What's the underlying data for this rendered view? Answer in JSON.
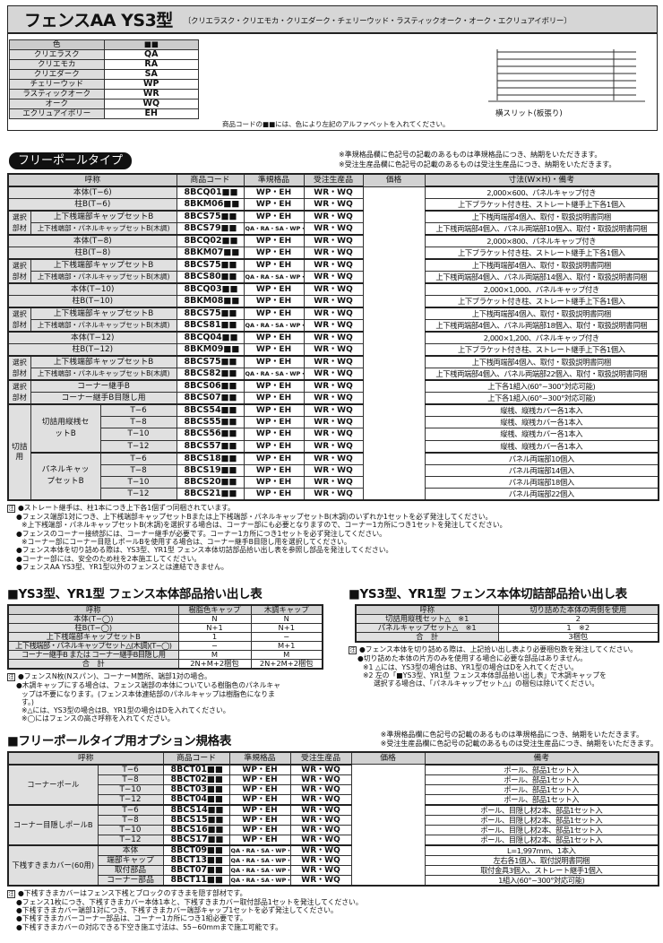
{
  "header": {
    "title": "フェンスAA YS3型",
    "subtitle": "〔クリエラスク・クリエモカ・クリエダーク・チェリーウッド・ラスティックオーク・オーク・エクリュアイボリー〕"
  },
  "colors": {
    "head": [
      "色",
      "■■"
    ],
    "rows": [
      [
        "クリエラスク",
        "QA"
      ],
      [
        "クリエモカ",
        "RA"
      ],
      [
        "クリエダーク",
        "SA"
      ],
      [
        "チェリーウッド",
        "WP"
      ],
      [
        "ラスティックオーク",
        "WR"
      ],
      [
        "オーク",
        "WQ"
      ],
      [
        "エクリュアイボリー",
        "EH"
      ]
    ]
  },
  "code_note": "商品コードの■■には、色により左記のアルファベットを入れてください。",
  "fence_caption": "横スリット(板張り)",
  "section_pill": "フリーポールタイプ",
  "stock_notes": [
    "※準規格品欄に色記号の記載のあるものは準規格品につき、納期をいただきます。",
    "※受注生産品欄に色記号の記載のあるものは受注生産品につき、納期をいただきます。"
  ],
  "main_table": {
    "headers": [
      "呼称",
      "商品コード",
      "準規格品",
      "受注生産品",
      "価格",
      "寸法(W×H)・備考"
    ],
    "blocks": [
      {
        "type": "plain",
        "rows": [
          {
            "name": "本体(T−6)",
            "code": "8BCQ01",
            "std": "WP・EH",
            "ord": "WR・WQ",
            "note": "2,000×600、パネルキャップ付き"
          },
          {
            "name": "柱B(T−6)",
            "code": "8BKM06",
            "std": "WP・EH",
            "ord": "WR・WQ",
            "note": "上下ブラケット付き柱、ストレート継手上下各1個入"
          }
        ]
      },
      {
        "type": "select",
        "label": "選択部材",
        "rows": [
          {
            "name": "上下桟端部キャップセットB",
            "code": "8BCS75",
            "std": "WP・EH",
            "ord": "WR・WQ",
            "note": "上下桟両端部4個入、取付・取扱説明書同梱"
          },
          {
            "name": "上下桟端部・パネルキャップセットB(木調)",
            "code": "8BCS79",
            "std": "QA・RA・SA・WP・EH",
            "ord": "WR・WQ",
            "note": "上下桟両端部4個入、パネル両端部10個入、取付・取扱説明書同梱"
          }
        ]
      },
      {
        "type": "plain",
        "rows": [
          {
            "name": "本体(T−8)",
            "code": "8BCQ02",
            "std": "WP・EH",
            "ord": "WR・WQ",
            "note": "2,000×800、パネルキャップ付き"
          },
          {
            "name": "柱B(T−8)",
            "code": "8BKM07",
            "std": "WP・EH",
            "ord": "WR・WQ",
            "note": "上下ブラケット付き柱、ストレート継手上下各1個入"
          }
        ]
      },
      {
        "type": "select",
        "label": "選択部材",
        "rows": [
          {
            "name": "上下桟端部キャップセットB",
            "code": "8BCS75",
            "std": "WP・EH",
            "ord": "WR・WQ",
            "note": "上下桟両端部4個入、取付・取扱説明書同梱"
          },
          {
            "name": "上下桟端部・パネルキャップセットB(木調)",
            "code": "8BCS80",
            "std": "QA・RA・SA・WP・EH",
            "ord": "WR・WQ",
            "note": "上下桟両端部4個入、パネル両端部14個入、取付・取扱説明書同梱"
          }
        ]
      },
      {
        "type": "plain",
        "rows": [
          {
            "name": "本体(T−10)",
            "code": "8BCQ03",
            "std": "WP・EH",
            "ord": "WR・WQ",
            "note": "2,000×1,000、パネルキャップ付き"
          },
          {
            "name": "柱B(T−10)",
            "code": "8BKM08",
            "std": "WP・EH",
            "ord": "WR・WQ",
            "note": "上下ブラケット付き柱、ストレート継手上下各1個入"
          }
        ]
      },
      {
        "type": "select",
        "label": "選択部材",
        "rows": [
          {
            "name": "上下桟端部キャップセットB",
            "code": "8BCS75",
            "std": "WP・EH",
            "ord": "WR・WQ",
            "note": "上下桟両端部4個入、取付・取扱説明書同梱"
          },
          {
            "name": "上下桟端部・パネルキャップセットB(木調)",
            "code": "8BCS81",
            "std": "QA・RA・SA・WP・EH",
            "ord": "WR・WQ",
            "note": "上下桟両端部4個入、パネル両端部18個入、取付・取扱説明書同梱"
          }
        ]
      },
      {
        "type": "plain",
        "rows": [
          {
            "name": "本体(T−12)",
            "code": "8BCQ04",
            "std": "WP・EH",
            "ord": "WR・WQ",
            "note": "2,000×1,200、パネルキャップ付き"
          },
          {
            "name": "柱B(T−12)",
            "code": "8BKM09",
            "std": "WP・EH",
            "ord": "WR・WQ",
            "note": "上下ブラケット付き柱、ストレート継手上下各1個入"
          }
        ]
      },
      {
        "type": "select",
        "label": "選択部材",
        "rows": [
          {
            "name": "上下桟端部キャップセットB",
            "code": "8BCS75",
            "std": "WP・EH",
            "ord": "WR・WQ",
            "note": "上下桟両端部4個入、取付・取扱説明書同梱"
          },
          {
            "name": "上下桟端部・パネルキャップセットB(木調)",
            "code": "8BCS82",
            "std": "QA・RA・SA・WP・EH",
            "ord": "WR・WQ",
            "note": "上下桟両端部4個入、パネル両端部22個入、取付・取扱説明書同梱"
          }
        ]
      },
      {
        "type": "select",
        "label": "選択部材",
        "rows": [
          {
            "name": "コーナー継手B",
            "code": "8BCS06",
            "std": "WP・EH",
            "ord": "WR・WQ",
            "note": "上下各1組入(60°~300°対応可能)"
          },
          {
            "name": "コーナー継手B目隠し用",
            "code": "8BCS07",
            "std": "WP・EH",
            "ord": "WR・WQ",
            "note": "上下各1組入(60°~300°対応可能)"
          }
        ]
      },
      {
        "type": "cut",
        "label": "切詰用",
        "groups": [
          {
            "label": "切詰用縦桟セットB",
            "rows": [
              {
                "name": "T−6",
                "code": "8BCS54",
                "std": "WP・EH",
                "ord": "WR・WQ",
                "note": "縦桟、縦桟カバー各1本入"
              },
              {
                "name": "T−8",
                "code": "8BCS55",
                "std": "WP・EH",
                "ord": "WR・WQ",
                "note": "縦桟、縦桟カバー各1本入"
              },
              {
                "name": "T−10",
                "code": "8BCS56",
                "std": "WP・EH",
                "ord": "WR・WQ",
                "note": "縦桟、縦桟カバー各1本入"
              },
              {
                "name": "T−12",
                "code": "8BCS57",
                "std": "WP・EH",
                "ord": "WR・WQ",
                "note": "縦桟、縦桟カバー各1本入"
              }
            ]
          },
          {
            "label": "パネルキャップセットB",
            "rows": [
              {
                "name": "T−6",
                "code": "8BCS18",
                "std": "WP・EH",
                "ord": "WR・WQ",
                "note": "パネル両端部10個入"
              },
              {
                "name": "T−8",
                "code": "8BCS19",
                "std": "WP・EH",
                "ord": "WR・WQ",
                "note": "パネル両端部14個入"
              },
              {
                "name": "T−10",
                "code": "8BCS20",
                "std": "WP・EH",
                "ord": "WR・WQ",
                "note": "パネル両端部18個入"
              },
              {
                "name": "T−12",
                "code": "8BCS21",
                "std": "WP・EH",
                "ord": "WR・WQ",
                "note": "パネル両端部22個入"
              }
            ]
          }
        ]
      }
    ],
    "code_suffix": "■■"
  },
  "main_notes": {
    "mark": "注",
    "lines": [
      {
        "t": "●ストレート継手は、柱1本につき上下各1個ずつ同梱されています。",
        "l": 1
      },
      {
        "t": "●フェンス端部1対につき、上下桟端部キャップセットBまたは上下桟端部・パネルキャップセットB(木調)のいずれか1セットを必ず発注してください。",
        "l": 1
      },
      {
        "t": "※上下桟端部・パネルキャップセットB(木調)を選択する場合は、コーナー部にも必要となりますので、コーナー1カ所につき1セットを発注してください。",
        "l": 2
      },
      {
        "t": "●フェンスのコーナー接続部には、コーナー継手が必要です。コーナー1カ所につき1セットを必ず発注してください。",
        "l": 1
      },
      {
        "t": "※コーナー部にコーナー目隠しポールBを使用する場合は、コーナー継手B目隠し用を選択してください。",
        "l": 2
      },
      {
        "t": "●フェンス本体を切り詰める際は、YS3型、YR1型 フェンス本体切詰部品拾い出し表を参照し部品を発注してください。",
        "l": 1
      },
      {
        "t": "●コーナー部には、安全のため柱を2本施工してください。",
        "l": 1
      },
      {
        "t": "●フェンスAA YS3型、YR1型以外のフェンスとは連結できません。",
        "l": 1
      }
    ]
  },
  "parts_table": {
    "title": "■YS3型、YR1型 フェンス本体部品拾い出し表",
    "headers": [
      "呼称",
      "樹脂色キャップ",
      "木調キャップ"
    ],
    "rows": [
      [
        "本体(T−◯)",
        "N",
        "N"
      ],
      [
        "柱B(T−◯)",
        "N+1",
        "N+1"
      ],
      [
        "上下桟端部キャップセットB",
        "1",
        "−"
      ],
      [
        "上下桟端部・パネルキャップセット△(木調)(T−◯)",
        "−",
        "M+1"
      ],
      [
        "コーナー継手B または コーナー継手B目隠し用",
        "M",
        "M"
      ],
      [
        "合　計",
        "2N+M+2梱包",
        "2N+2M+2梱包"
      ]
    ],
    "notes": [
      {
        "t": "●フェンスN枚(Nスパン)、コーナーM箇所、端部1対の場合。",
        "l": 1
      },
      {
        "t": "●木調キャップにする場合は、フェンス端部の本体についている樹脂色のパネルキャ",
        "l": 1
      },
      {
        "t": "ップは不要になります。(フェンス本体連結部のパネルキャップは樹脂色になりま",
        "l": 2
      },
      {
        "t": "す。)",
        "l": 2
      },
      {
        "t": "※△には、YS3型の場合はB、YR1型の場合はDを入れてください。",
        "l": 2
      },
      {
        "t": "※◯にはフェンスの高さ呼称を入れてください。",
        "l": 2
      }
    ]
  },
  "cut_table": {
    "title": "■YS3型、YR1型 フェンス本体切詰部品拾い出し表",
    "headers": [
      "呼称",
      "切り詰めた本体の両側を使用"
    ],
    "rows": [
      [
        "切詰用縦桟セット△　※1",
        "2"
      ],
      [
        "パネルキャップセット△　※1",
        "1　※2"
      ],
      [
        "合　計",
        "3梱包"
      ]
    ],
    "notes": [
      {
        "t": "●フェンス本体を切り詰める際は、上記拾い出し表より必要梱包数を発注してください。",
        "l": 1
      },
      {
        "t": "●切り詰めた本体の片方のみを使用する場合に必要な部品はありません。",
        "l": 1
      },
      {
        "t": "※1 △には、YS3型の場合はB、YR1型の場合はDを入れてください。",
        "l": 2
      },
      {
        "t": "※2 左の「■YS3型、YR1型 フェンス本体部品拾い出し表」で木調キャップを",
        "l": 2
      },
      {
        "t": "選択する場合は、「パネルキャップセット△」の梱包は除いてください。",
        "l": 3
      }
    ]
  },
  "option_table": {
    "title": "■フリーポールタイプ用オプション規格表",
    "headers": [
      "呼称",
      "商品コード",
      "準規格品",
      "受注生産品",
      "価格",
      "備考"
    ],
    "groups": [
      {
        "label": "コーナーポール",
        "rows": [
          {
            "name": "T−6",
            "code": "8BCT01",
            "std": "WP・EH",
            "ord": "WR・WQ",
            "note": "ポール、部品1セット入"
          },
          {
            "name": "T−8",
            "code": "8BCT02",
            "std": "WP・EH",
            "ord": "WR・WQ",
            "note": "ポール、部品1セット入"
          },
          {
            "name": "T−10",
            "code": "8BCT03",
            "std": "WP・EH",
            "ord": "WR・WQ",
            "note": "ポール、部品1セット入"
          },
          {
            "name": "T−12",
            "code": "8BCT04",
            "std": "WP・EH",
            "ord": "WR・WQ",
            "note": "ポール、部品1セット入"
          }
        ]
      },
      {
        "label": "コーナー目隠しポールB",
        "rows": [
          {
            "name": "T−6",
            "code": "8BCS14",
            "std": "WP・EH",
            "ord": "WR・WQ",
            "note": "ポール、目隠し材2本、部品1セット入"
          },
          {
            "name": "T−8",
            "code": "8BCS15",
            "std": "WP・EH",
            "ord": "WR・WQ",
            "note": "ポール、目隠し材2本、部品1セット入"
          },
          {
            "name": "T−10",
            "code": "8BCS16",
            "std": "WP・EH",
            "ord": "WR・WQ",
            "note": "ポール、目隠し材2本、部品1セット入"
          },
          {
            "name": "T−12",
            "code": "8BCS17",
            "std": "WP・EH",
            "ord": "WR・WQ",
            "note": "ポール、目隠し材2本、部品1セット入"
          }
        ]
      },
      {
        "label": "下桟すきまカバー(60用)",
        "rows": [
          {
            "name": "本体",
            "code": "8BCT09",
            "std": "QA・RA・SA・WP・EH",
            "ord": "WR・WQ",
            "note": "L=1,997mm、1本入"
          },
          {
            "name": "端部キャップ",
            "code": "8BCT13",
            "std": "QA・RA・SA・WP・EH",
            "ord": "WR・WQ",
            "note": "左右各1個入、取付説明書同梱"
          },
          {
            "name": "取付部品",
            "code": "8BCT07",
            "std": "QA・RA・SA・WP・EH",
            "ord": "WR・WQ",
            "note": "取付金具3個入、ストレート継手1個入"
          },
          {
            "name": "コーナー部品",
            "code": "8BCT11",
            "std": "QA・RA・SA・WP・EH",
            "ord": "WR・WQ",
            "note": "1組入(60°~300°対応可能)"
          }
        ]
      }
    ],
    "notes": [
      {
        "t": "●下桟すきまカバーはフェンス下桟とブロックのすきまを隠す部材です。",
        "l": 1
      },
      {
        "t": "●フェンス1枚につき、下桟すきまカバー本体1本と、下桟すきまカバー取付部品1セットを発注してください。",
        "l": 1
      },
      {
        "t": "●下桟すきまカバー端部1対につき、下桟すきまカバー端部キャップ1セットを必ず発注してください。",
        "l": 1
      },
      {
        "t": "●下桟すきまカバーコーナー部品は、コーナー1カ所につき1組必要です。",
        "l": 1
      },
      {
        "t": "●下桟すきまカバーの対応できる下空き施工寸法は、55~60mmまで施工可能です。",
        "l": 1
      }
    ]
  }
}
